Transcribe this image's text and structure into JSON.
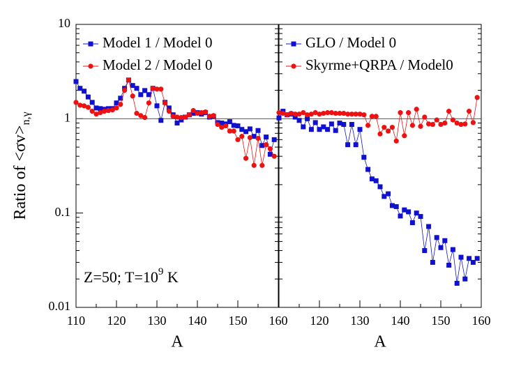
{
  "chart_data": [
    {
      "type": "line",
      "xlabel": "A",
      "ylabel": "Ratio of <σv>",
      "ylabel_sub": "n,γ",
      "log_y": true,
      "xlim": [
        110,
        160
      ],
      "ylim": [
        0.01,
        10
      ],
      "xticks": [
        110,
        120,
        130,
        140,
        150,
        160
      ],
      "yticks": [
        0.01,
        0.1,
        1,
        10
      ],
      "hline": 1,
      "annotation": {
        "text": "Z=50; T=10",
        "sup": "9",
        "tail": " K"
      },
      "x": [
        110,
        111,
        112,
        113,
        114,
        115,
        116,
        117,
        118,
        119,
        120,
        121,
        122,
        123,
        124,
        125,
        126,
        127,
        128,
        129,
        130,
        131,
        132,
        133,
        134,
        135,
        136,
        137,
        138,
        139,
        140,
        141,
        142,
        143,
        144,
        145,
        146,
        147,
        148,
        149,
        150,
        151,
        152,
        153,
        154,
        155,
        156,
        157,
        158,
        159
      ],
      "series": [
        {
          "name": "Model 1 / Model 0",
          "color": "#1010d0",
          "marker": "square",
          "values": [
            2.48,
            2.1,
            1.96,
            1.7,
            1.49,
            1.3,
            1.28,
            1.26,
            1.28,
            1.28,
            1.47,
            1.65,
            2.1,
            2.57,
            2.25,
            2.1,
            1.8,
            1.99,
            1.8,
            2.1,
            1.37,
            0.96,
            1.49,
            1.3,
            1.1,
            0.9,
            0.97,
            1.04,
            1.1,
            1.14,
            1.16,
            1.12,
            1.16,
            1.04,
            1.06,
            0.91,
            0.9,
            0.88,
            0.93,
            0.85,
            0.84,
            0.77,
            0.73,
            0.78,
            0.65,
            0.75,
            0.52,
            0.64,
            0.42,
            0.6
          ]
        },
        {
          "name": "Model 2 / Model 0",
          "color": "#ee1111",
          "marker": "circle",
          "values": [
            1.49,
            1.39,
            1.37,
            1.32,
            1.2,
            1.12,
            1.16,
            1.2,
            1.22,
            1.24,
            1.3,
            1.42,
            2.0,
            2.57,
            1.74,
            1.14,
            1.08,
            1.03,
            1.47,
            2.1,
            2.06,
            2.06,
            1.47,
            1.2,
            1.06,
            1.04,
            1.03,
            1.04,
            1.1,
            1.22,
            1.14,
            1.16,
            1.18,
            1.06,
            1.08,
            0.87,
            0.81,
            0.84,
            0.74,
            0.74,
            0.6,
            0.65,
            0.38,
            0.63,
            0.32,
            0.62,
            0.32,
            0.53,
            0.48,
            0.4
          ]
        }
      ]
    },
    {
      "type": "line",
      "xlabel": "A",
      "log_y": true,
      "xlim": [
        110,
        160
      ],
      "ylim": [
        0.01,
        10
      ],
      "xticks": [
        120,
        130,
        140,
        150,
        160
      ],
      "hline": 1,
      "x": [
        110,
        111,
        112,
        113,
        114,
        115,
        116,
        117,
        118,
        119,
        120,
        121,
        122,
        123,
        124,
        125,
        126,
        127,
        128,
        129,
        130,
        131,
        132,
        133,
        134,
        135,
        136,
        137,
        138,
        139,
        140,
        141,
        142,
        143,
        144,
        145,
        146,
        147,
        148,
        149,
        150,
        151,
        152,
        153,
        154,
        155,
        156,
        157,
        158,
        159
      ],
      "series": [
        {
          "name": "GLO / Model 0",
          "color": "#1010d0",
          "marker": "square",
          "values": [
            1.02,
            1.2,
            1.1,
            1.12,
            1.04,
            0.96,
            0.82,
            1.0,
            0.77,
            0.91,
            0.77,
            0.82,
            0.77,
            0.88,
            0.75,
            0.9,
            0.87,
            0.53,
            0.87,
            0.53,
            0.77,
            0.39,
            0.29,
            0.23,
            0.22,
            0.19,
            0.15,
            0.16,
            0.12,
            0.117,
            0.093,
            0.108,
            0.103,
            0.079,
            0.1,
            0.092,
            0.04,
            0.072,
            0.03,
            0.055,
            0.043,
            0.051,
            0.028,
            0.041,
            0.018,
            0.034,
            0.02,
            0.033,
            0.03,
            0.033
          ]
        },
        {
          "name": "Skyrme+QRPA / Model0",
          "color": "#ee1111",
          "marker": "circle",
          "values": [
            1.16,
            1.14,
            1.1,
            1.14,
            1.12,
            1.12,
            1.16,
            1.1,
            1.12,
            1.16,
            1.12,
            1.14,
            1.16,
            1.16,
            1.14,
            1.14,
            1.14,
            1.12,
            1.12,
            1.12,
            1.12,
            1.1,
            0.85,
            1.06,
            1.06,
            0.69,
            0.81,
            0.74,
            0.81,
            0.58,
            1.16,
            0.66,
            1.16,
            0.85,
            1.26,
            0.83,
            1.04,
            0.88,
            0.87,
            0.97,
            0.87,
            0.9,
            1.2,
            0.97,
            0.9,
            0.87,
            0.88,
            1.2,
            0.91,
            1.68
          ]
        }
      ]
    }
  ]
}
